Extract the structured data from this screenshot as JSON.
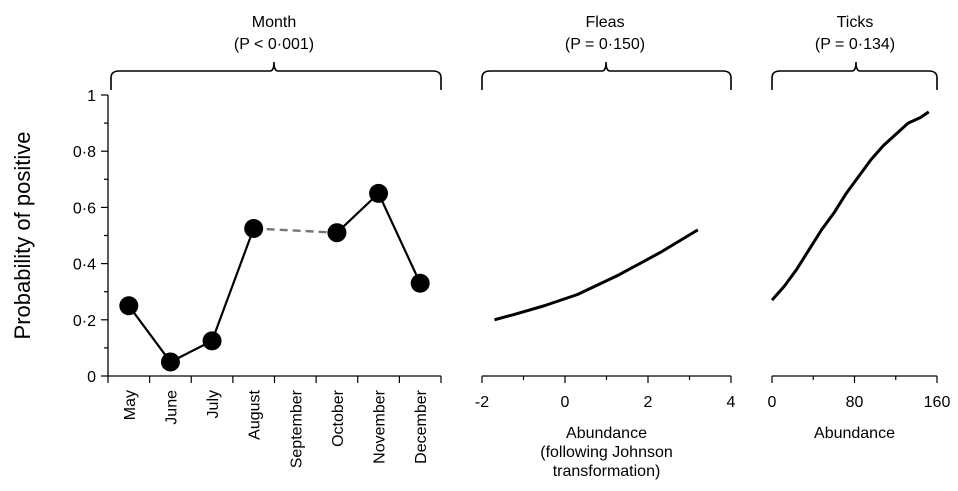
{
  "chart_data": {
    "ylabel": "Probability of positive",
    "ylim": [
      0,
      1
    ],
    "yticks": [
      "0",
      "0·2",
      "0·4",
      "0·6",
      "0·8",
      "1"
    ],
    "panels": [
      {
        "type": "line",
        "title": "Month",
        "subtitle": "(P < 0·001)",
        "xlabel": "",
        "categories": [
          "May",
          "June",
          "July",
          "August",
          "September",
          "October",
          "November",
          "December"
        ],
        "series": [
          {
            "values": [
              0.25,
              0.05,
              0.125,
              0.525,
              null,
              0.51,
              0.65,
              0.33
            ]
          }
        ],
        "gap_bridge": {
          "from": "August",
          "to": "October",
          "style": "dashed",
          "color": "#777777"
        }
      },
      {
        "type": "line",
        "title": "Fleas",
        "subtitle": "(P = 0·150)",
        "xlabel_lines": [
          "Abundance",
          "(following Johnson",
          "transformation)"
        ],
        "xlim": [
          -2,
          4
        ],
        "xticks": [
          "-2",
          "0",
          "2",
          "4"
        ],
        "x": [
          -1.7,
          -1.2,
          -0.5,
          0.3,
          1.3,
          2.3,
          3.2
        ],
        "y": [
          0.2,
          0.22,
          0.25,
          0.29,
          0.36,
          0.44,
          0.52
        ]
      },
      {
        "type": "line",
        "title": "Ticks",
        "subtitle": "(P = 0·134)",
        "xlabel_lines": [
          "Abundance"
        ],
        "xlim": [
          0,
          160
        ],
        "xticks": [
          "0",
          "80",
          "160"
        ],
        "x": [
          0,
          12,
          24,
          36,
          48,
          60,
          72,
          84,
          96,
          108,
          120,
          132,
          144,
          152
        ],
        "y": [
          0.27,
          0.32,
          0.38,
          0.45,
          0.52,
          0.58,
          0.65,
          0.71,
          0.77,
          0.82,
          0.86,
          0.9,
          0.92,
          0.94
        ]
      }
    ]
  }
}
